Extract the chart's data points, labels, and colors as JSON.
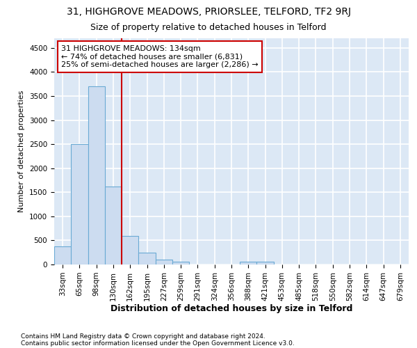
{
  "title1": "31, HIGHGROVE MEADOWS, PRIORSLEE, TELFORD, TF2 9RJ",
  "title2": "Size of property relative to detached houses in Telford",
  "xlabel": "Distribution of detached houses by size in Telford",
  "ylabel": "Number of detached properties",
  "footnote1": "Contains HM Land Registry data © Crown copyright and database right 2024.",
  "footnote2": "Contains public sector information licensed under the Open Government Licence v3.0.",
  "categories": [
    "33sqm",
    "65sqm",
    "98sqm",
    "130sqm",
    "162sqm",
    "195sqm",
    "227sqm",
    "259sqm",
    "291sqm",
    "324sqm",
    "356sqm",
    "388sqm",
    "421sqm",
    "453sqm",
    "485sqm",
    "518sqm",
    "550sqm",
    "582sqm",
    "614sqm",
    "647sqm",
    "679sqm"
  ],
  "values": [
    375,
    2500,
    3700,
    1625,
    590,
    240,
    100,
    55,
    0,
    0,
    0,
    55,
    55,
    0,
    0,
    0,
    0,
    0,
    0,
    0,
    0
  ],
  "bar_color": "#ccdcf0",
  "bar_edge_color": "#6aaad4",
  "annotation_text": "31 HIGHGROVE MEADOWS: 134sqm\n← 74% of detached houses are smaller (6,831)\n25% of semi-detached houses are larger (2,286) →",
  "vline_color": "#cc0000",
  "annotation_box_color": "#ffffff",
  "ylim": [
    0,
    4700
  ],
  "yticks": [
    0,
    500,
    1000,
    1500,
    2000,
    2500,
    3000,
    3500,
    4000,
    4500
  ],
  "bg_color": "#dce8f5",
  "grid_color": "#ffffff",
  "fig_bg_color": "#ffffff",
  "title1_fontsize": 10,
  "title2_fontsize": 9,
  "xlabel_fontsize": 9,
  "ylabel_fontsize": 8,
  "tick_fontsize": 7.5,
  "footnote_fontsize": 6.5
}
